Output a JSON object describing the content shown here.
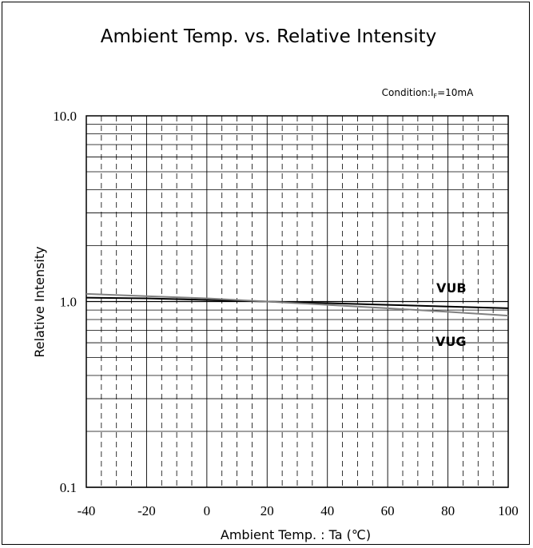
{
  "chart_data": {
    "type": "line",
    "title": "Ambient Temp. vs. Relative Intensity",
    "condition": {
      "prefix": "Condition:I",
      "subscript": "F",
      "suffix": "=10mA"
    },
    "xlabel": "Ambient Temp. : Ta (℃)",
    "ylabel": "Relative Intensity",
    "xlim": [
      -40,
      100
    ],
    "ylim": [
      0.1,
      10.0
    ],
    "yscale": "log",
    "x_ticks": [
      -40,
      -20,
      0,
      20,
      40,
      60,
      80,
      100
    ],
    "y_ticks": [
      "0.1",
      "1.0",
      "10.0"
    ],
    "grid": true,
    "series": [
      {
        "name": "VUB",
        "color": "#000000",
        "x": [
          -40,
          -20,
          0,
          20,
          40,
          60,
          80,
          100
        ],
        "y": [
          1.05,
          1.04,
          1.02,
          1.0,
          0.98,
          0.96,
          0.94,
          0.92
        ]
      },
      {
        "name": "VUG",
        "color": "#808080",
        "x": [
          -40,
          -20,
          0,
          20,
          40,
          60,
          80,
          100
        ],
        "y": [
          1.1,
          1.07,
          1.04,
          1.0,
          0.96,
          0.92,
          0.88,
          0.84
        ]
      }
    ]
  }
}
